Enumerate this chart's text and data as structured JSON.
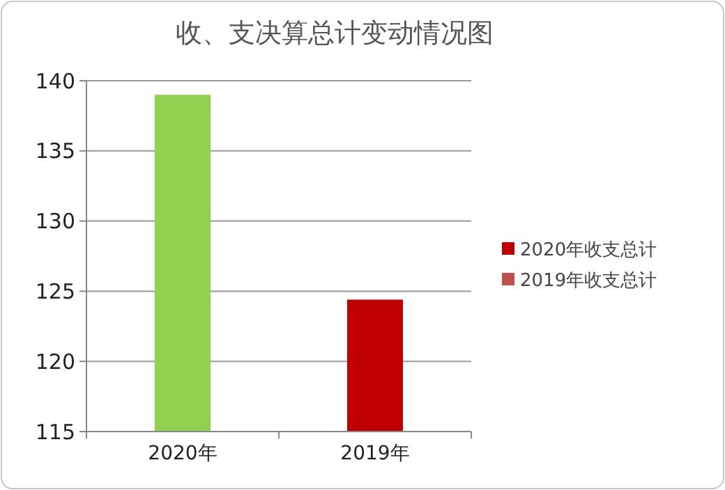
{
  "chart_data": {
    "type": "bar",
    "title": "收、支决算总计变动情况图",
    "categories": [
      "2020年",
      "2019年"
    ],
    "values": [
      139,
      124.4
    ],
    "colors": [
      "#92d050",
      "#c00000"
    ],
    "ylim": [
      115,
      140
    ],
    "yticks": [
      115,
      120,
      125,
      130,
      135,
      140
    ],
    "grid": "y",
    "annotations": [
      "2020年收支总计",
      "2019年收支总计"
    ]
  }
}
